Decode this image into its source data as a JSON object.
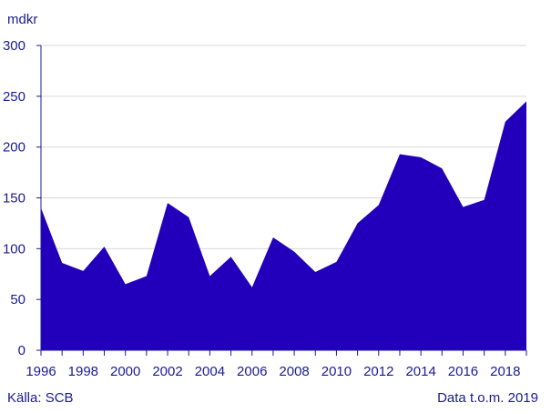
{
  "chart_data": {
    "type": "area",
    "unit_label": "mdkr",
    "x": [
      1996,
      1997,
      1998,
      1999,
      2000,
      2001,
      2002,
      2003,
      2004,
      2005,
      2006,
      2007,
      2008,
      2009,
      2010,
      2011,
      2012,
      2013,
      2014,
      2015,
      2016,
      2017,
      2018,
      2019
    ],
    "values": [
      140,
      86,
      78,
      102,
      65,
      73,
      145,
      131,
      73,
      92,
      62,
      111,
      97,
      77,
      87,
      125,
      143,
      193,
      190,
      179,
      141,
      148,
      225,
      245
    ],
    "x_ticks": [
      "1996",
      "1998",
      "2000",
      "2002",
      "2004",
      "2006",
      "2008",
      "2010",
      "2012",
      "2014",
      "2016",
      "2018"
    ],
    "y_ticks": [
      "0",
      "50",
      "100",
      "150",
      "200",
      "250",
      "300"
    ],
    "ylim": [
      0,
      300
    ],
    "xlim": [
      1996,
      2019
    ],
    "grid": true,
    "colors": {
      "fill": "#2200bb",
      "text": "#1a1a99",
      "grid": "#d9d9d9",
      "axis": "#1a1a99"
    }
  },
  "footer": {
    "source": "Källa: SCB",
    "data_note": "Data t.o.m. 2019"
  }
}
